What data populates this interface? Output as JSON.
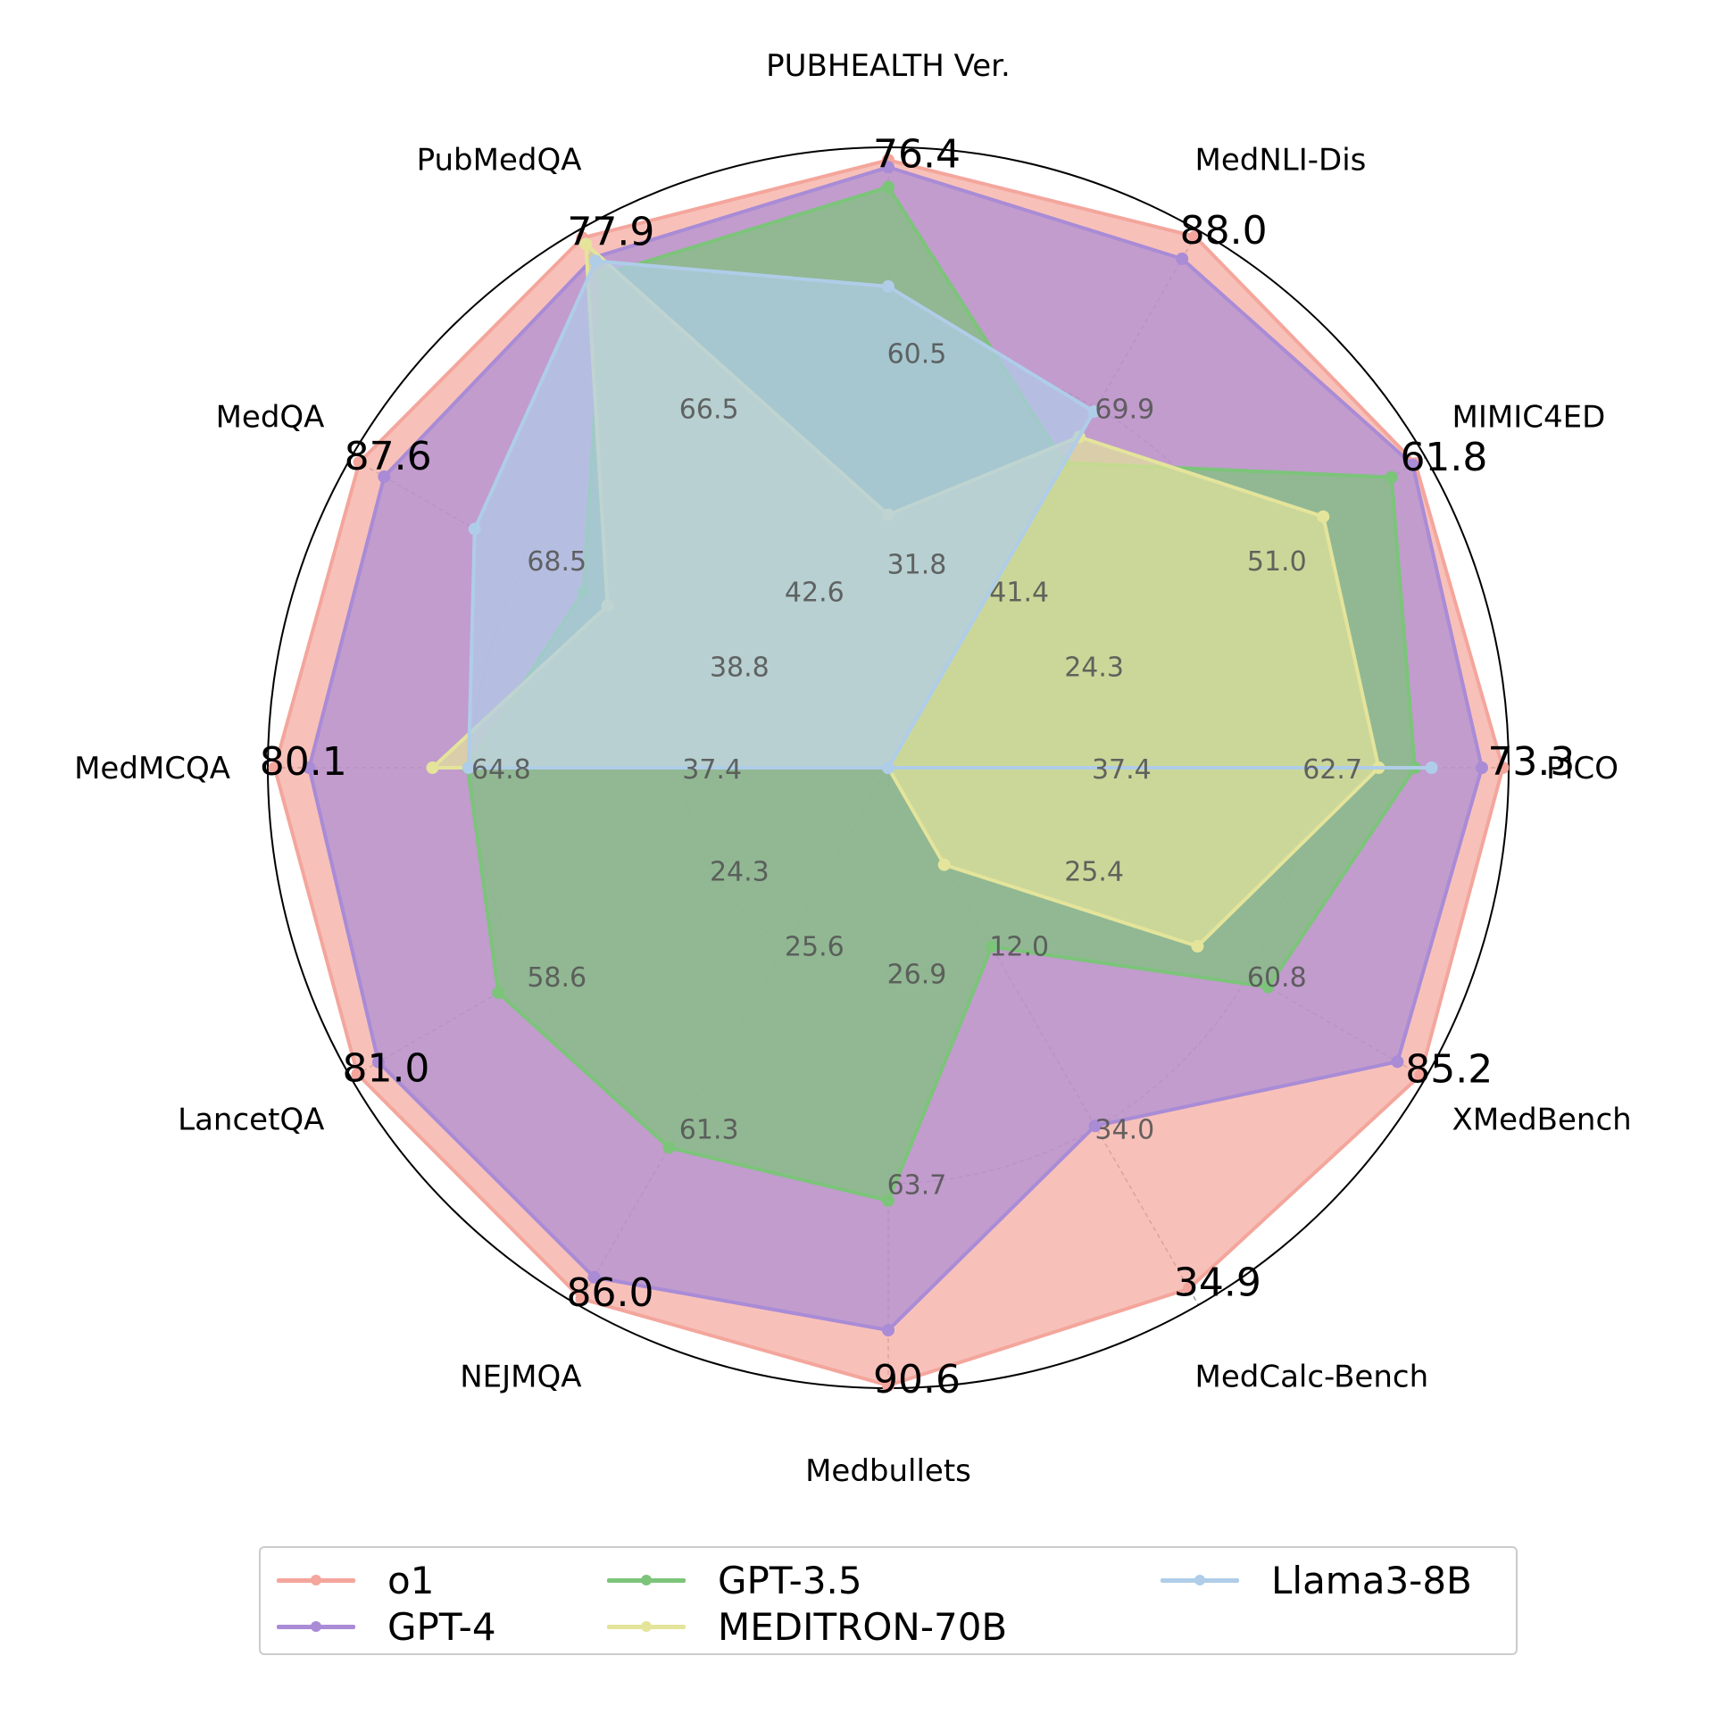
{
  "chart_data": {
    "type": "radar",
    "axes": [
      "PICO",
      "MIMIC4ED",
      "MedNLI-Dis",
      "PUBHEALTH Ver.",
      "PubMedQA",
      "MedQA",
      "MedMCQA",
      "LancetQA",
      "NEJMQA",
      "Medbullets",
      "MedCalc-Bench",
      "XMedBench"
    ],
    "axis_scale_max": [
      74,
      63,
      89,
      78,
      79,
      89,
      81,
      82,
      87,
      91,
      36,
      86
    ],
    "series": [
      {
        "name": "o1",
        "color": "#f4a69c",
        "values": [
          73.3,
          61.8,
          88.0,
          76.4,
          77.9,
          87.6,
          80.1,
          81.0,
          86.0,
          90.6,
          34.9,
          85.2
        ]
      },
      {
        "name": "GPT-4",
        "color": "#a98bd6",
        "values": [
          70.8,
          61.5,
          84.3,
          75.5,
          75.0,
          83.5,
          75.6,
          77.8,
          82.5,
          82.5,
          24.0,
          81.5
        ]
      },
      {
        "name": "GPT-3.5",
        "color": "#7cc47a",
        "values": [
          62.8,
          59.0,
          50.5,
          73.0,
          72.5,
          50.5,
          54.9,
          59.5,
          61.5,
          63.5,
          12.0,
          60.8
        ]
      },
      {
        "name": "MEDITRON-70B",
        "color": "#e4e49b",
        "values": [
          58.5,
          51.0,
          54.8,
          31.8,
          77.0,
          46.5,
          59.5,
          0,
          0,
          0,
          6.5,
          49.5
        ]
      },
      {
        "name": "Llama3-8B",
        "color": "#afcde8",
        "values": [
          64.8,
          0,
          59.0,
          60.5,
          74.5,
          68.5,
          54.8,
          0,
          0,
          0,
          0,
          0
        ]
      }
    ],
    "value_labels": {
      "PICO": [
        "73.3",
        "62.7",
        "37.4"
      ],
      "MIMIC4ED": [
        "61.8",
        "51.0",
        "24.3"
      ],
      "MedNLI-Dis": [
        "88.0",
        "69.9",
        "41.4"
      ],
      "PUBHEALTH Ver.": [
        "76.4",
        "60.5",
        "31.8"
      ],
      "PubMedQA": [
        "77.9",
        "66.5",
        "42.6"
      ],
      "MedQA": [
        "87.6",
        "68.5",
        "38.8"
      ],
      "MedMCQA": [
        "80.1",
        "64.8",
        "37.4"
      ],
      "LancetQA": [
        "81.0",
        "58.6",
        "24.3"
      ],
      "NEJMQA": [
        "86.0",
        "61.3",
        "25.6"
      ],
      "Medbullets": [
        "90.6",
        "63.7",
        "26.9"
      ],
      "MedCalc-Bench": [
        "34.9",
        "34.0",
        "12.0"
      ],
      "XMedBench": [
        "85.2",
        "60.8",
        "25.4"
      ]
    },
    "grid": true,
    "legend_position": "bottom"
  }
}
